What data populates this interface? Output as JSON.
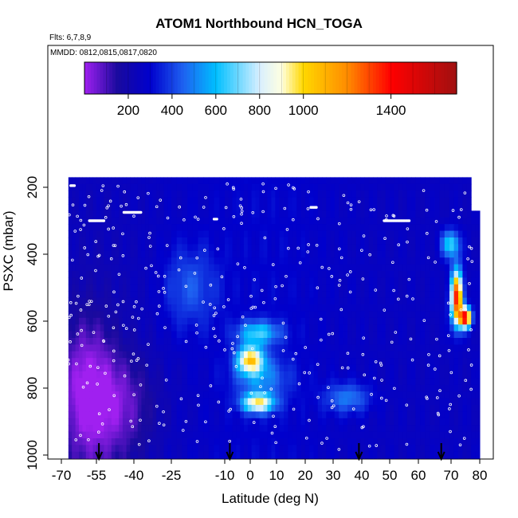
{
  "chart_data": {
    "type": "heatmap",
    "title": "ATOM1 Northbound HCN_TOGA",
    "annotations": [
      "Flts: 6,7,8,9",
      "MMDD: 0812,0815,0817,0820"
    ],
    "xlabel": "Latitude (deg N)",
    "ylabel": "PSXC (mbar)",
    "xlim": [
      -70,
      80
    ],
    "ylim": [
      1000,
      150
    ],
    "x_ticks": [
      -70,
      -55,
      -40,
      -25,
      -10,
      0,
      10,
      20,
      30,
      40,
      50,
      60,
      70,
      80
    ],
    "x_tick_labels": [
      "-70",
      "-55",
      "-40",
      "-25",
      "-10",
      "0",
      "10",
      "20",
      "30",
      "40",
      "50",
      "60",
      "70",
      "80"
    ],
    "y_ticks": [
      200,
      400,
      600,
      800,
      1000
    ],
    "y_tick_labels": [
      "200",
      "400",
      "600",
      "800",
      "1000"
    ],
    "colorbar": {
      "range": [
        0,
        1700
      ],
      "tick_values": [
        200,
        400,
        600,
        800,
        1000,
        1400
      ],
      "tick_labels": [
        "200",
        "400",
        "600",
        "800",
        "1000",
        "1400"
      ],
      "stops": [
        {
          "v": 0,
          "color": "#a020f0"
        },
        {
          "v": 150,
          "color": "#1a0a9e"
        },
        {
          "v": 300,
          "color": "#0000cd"
        },
        {
          "v": 450,
          "color": "#1e60f0"
        },
        {
          "v": 600,
          "color": "#00bfff"
        },
        {
          "v": 800,
          "color": "#d8efff"
        },
        {
          "v": 900,
          "color": "#ffffe0"
        },
        {
          "v": 1000,
          "color": "#ffd700"
        },
        {
          "v": 1200,
          "color": "#ff8c00"
        },
        {
          "v": 1400,
          "color": "#ff0000"
        },
        {
          "v": 1700,
          "color": "#a01010"
        }
      ]
    },
    "grid": false,
    "flight_profile_markers_lat": [
      -54,
      -8,
      39,
      67
    ],
    "background_hcn_pptv": 260,
    "features": [
      {
        "lat": 0,
        "p": 715,
        "dlat": 5,
        "dp": 40,
        "amp": 700
      },
      {
        "lat": 3,
        "p": 845,
        "dlat": 6,
        "dp": 28,
        "amp": 640
      },
      {
        "lat": 3,
        "p": 635,
        "dlat": 8,
        "dp": 35,
        "amp": 360
      },
      {
        "lat": 4,
        "p": 770,
        "dlat": 10,
        "dp": 60,
        "amp": 220
      },
      {
        "lat": 35,
        "p": 830,
        "dlat": 8,
        "dp": 45,
        "amp": 220
      },
      {
        "lat": -20,
        "p": 500,
        "dlat": 8,
        "dp": 120,
        "amp": 160
      },
      {
        "lat": 72,
        "p": 530,
        "dlat": 2,
        "dp": 80,
        "amp": 1100
      },
      {
        "lat": 75,
        "p": 590,
        "dlat": 2,
        "dp": 30,
        "amp": 1150
      },
      {
        "lat": 70,
        "p": 370,
        "dlat": 3,
        "dp": 40,
        "amp": 400
      },
      {
        "lat": -60,
        "p": 800,
        "dlat": 12,
        "dp": 220,
        "amp": -200
      },
      {
        "lat": -45,
        "p": 850,
        "dlat": 15,
        "dp": 150,
        "amp": -150
      }
    ]
  }
}
